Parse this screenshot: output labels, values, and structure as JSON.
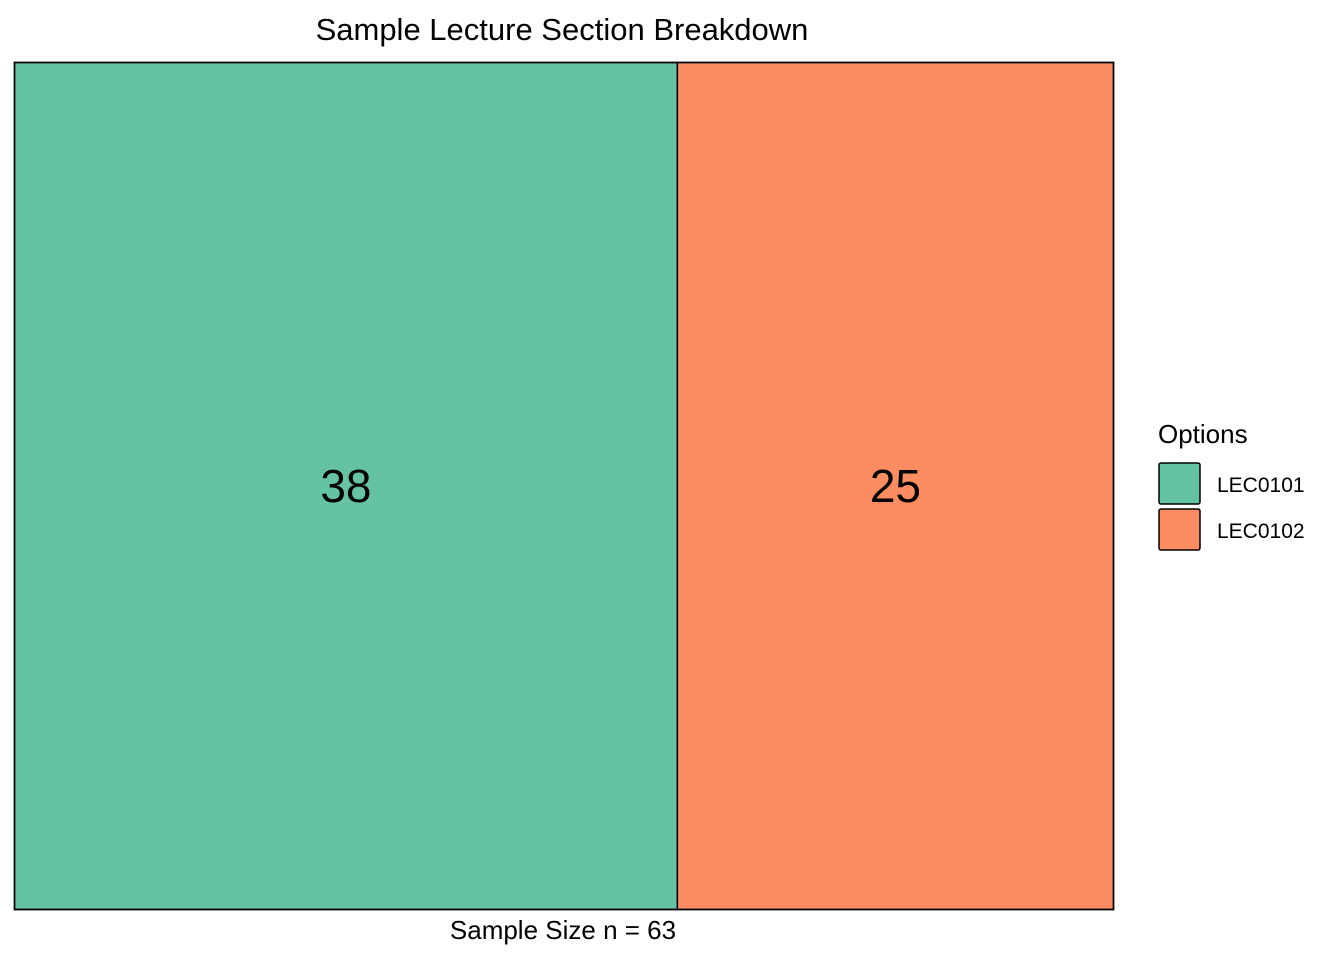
{
  "chart_data": {
    "type": "treemap",
    "title": "Sample Lecture Section Breakdown",
    "caption": "Sample Size n = 63",
    "total": 63,
    "categories": [
      "LEC0101",
      "LEC0102"
    ],
    "values": [
      38,
      25
    ],
    "colors": [
      "#66c2a5",
      "#fc8d62"
    ],
    "legend": {
      "title": "Options",
      "position": "right",
      "entries": [
        "LEC0101",
        "LEC0102"
      ]
    },
    "grid": false
  }
}
